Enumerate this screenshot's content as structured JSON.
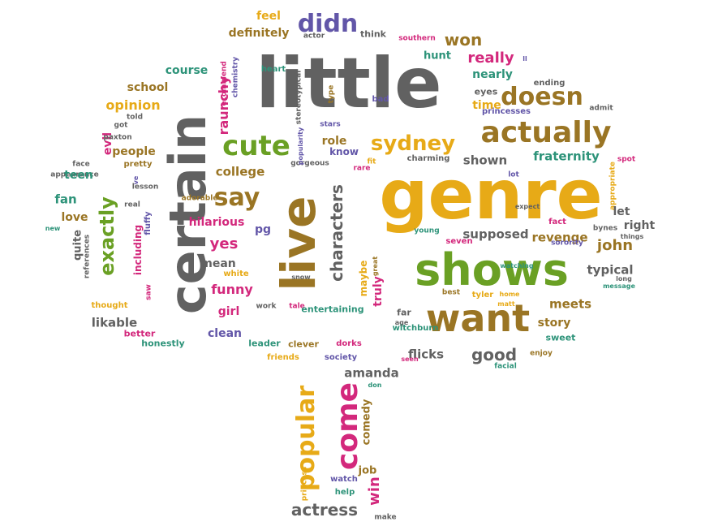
{
  "title": "Word cloud shaped like a tree",
  "palette": [
    "#616161",
    "#9a7524",
    "#e7aa17",
    "#6aa024",
    "#d3287c",
    "#6256a8",
    "#2d9379"
  ],
  "words": [
    "little",
    "genre",
    "certain",
    "live",
    "shows",
    "want",
    "actually",
    "doesn",
    "popular",
    "come",
    "exactly",
    "characters",
    "sydney",
    "cute",
    "say",
    "didn",
    "won",
    "really",
    "fraternity",
    "john",
    "revenge",
    "supposed",
    "shown",
    "typical",
    "meets",
    "story",
    "good",
    "flicks",
    "amanda",
    "actress",
    "comedy",
    "job",
    "win",
    "help",
    "watch",
    "make",
    "princess",
    "feel",
    "think",
    "definitely",
    "actor",
    "southern",
    "hunt",
    "heart",
    "recommend",
    "chemistry",
    "nearly",
    "course",
    "raunchy",
    "school",
    "opinion",
    "evil",
    "people",
    "college",
    "role",
    "know",
    "fit",
    "rare",
    "charming",
    "gorgeous",
    "popularity",
    "stars",
    "stereotypical",
    "type",
    "bad",
    "eyes",
    "princesses",
    "ending",
    "admit",
    "time",
    "got",
    "told",
    "paxton",
    "pretty",
    "face",
    "appearance",
    "teen",
    "lesson",
    "ve",
    "fan",
    "love",
    "new",
    "quite",
    "references",
    "including",
    "fluffy",
    "real",
    "adorable",
    "hilarious",
    "pg",
    "yes",
    "mean",
    "white",
    "funny",
    "girl",
    "work",
    "snow",
    "saw",
    "thought",
    "likable",
    "better",
    "honestly",
    "clean",
    "leader",
    "friends",
    "clever",
    "society",
    "dorks",
    "don",
    "tale",
    "entertaining",
    "maybe",
    "great",
    "truly",
    "far",
    "age",
    "seen",
    "witchburn",
    "young",
    "seven",
    "best",
    "tyler",
    "home",
    "matt",
    "watching",
    "sorority",
    "fact",
    "expect",
    "lot",
    "appropriate",
    "spot",
    "let",
    "right",
    "bynes",
    "things",
    "long",
    "message",
    "sweet",
    "enjoy",
    "facial",
    "ll"
  ]
}
